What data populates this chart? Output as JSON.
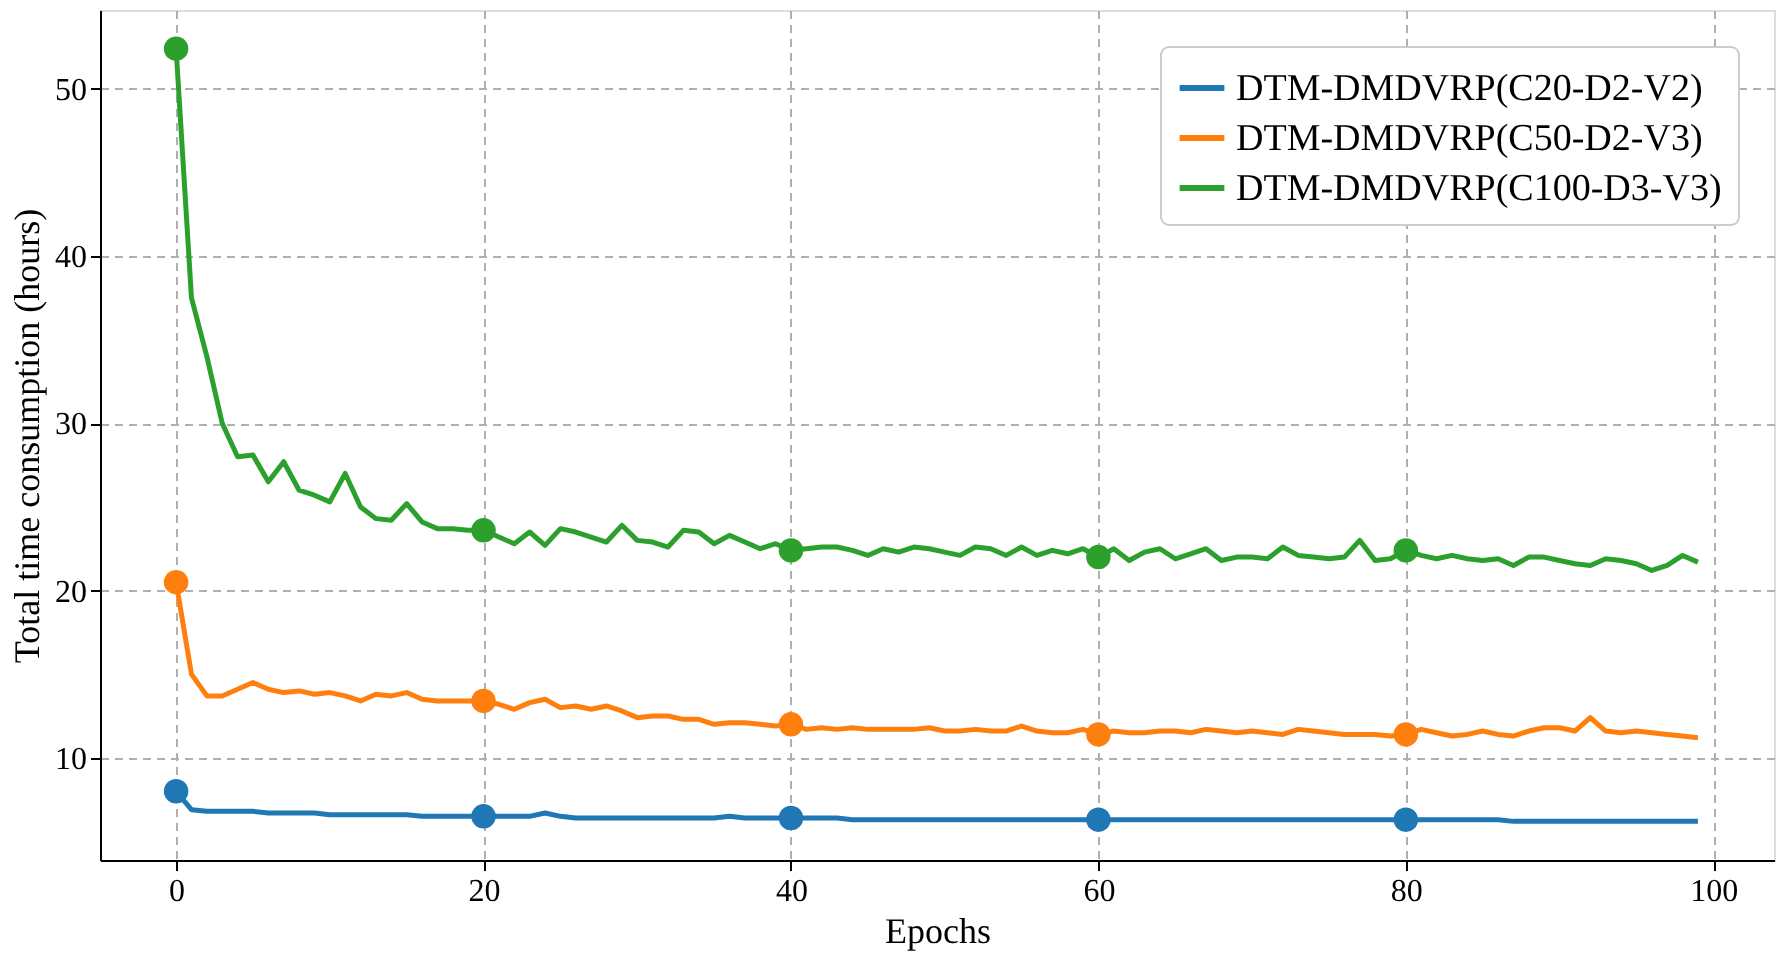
{
  "chart_data": {
    "type": "line",
    "xlabel": "Epochs",
    "ylabel": "Total time consumption (hours)",
    "x": [
      0,
      1,
      2,
      3,
      4,
      5,
      6,
      7,
      8,
      9,
      10,
      11,
      12,
      13,
      14,
      15,
      16,
      17,
      18,
      19,
      20,
      21,
      22,
      23,
      24,
      25,
      26,
      27,
      28,
      29,
      30,
      31,
      32,
      33,
      34,
      35,
      36,
      37,
      38,
      39,
      40,
      41,
      42,
      43,
      44,
      45,
      46,
      47,
      48,
      49,
      50,
      51,
      52,
      53,
      54,
      55,
      56,
      57,
      58,
      59,
      60,
      61,
      62,
      63,
      64,
      65,
      66,
      67,
      68,
      69,
      70,
      71,
      72,
      73,
      74,
      75,
      76,
      77,
      78,
      79,
      80,
      81,
      82,
      83,
      84,
      85,
      86,
      87,
      88,
      89,
      90,
      91,
      92,
      93,
      94,
      95,
      96,
      97,
      98,
      99
    ],
    "series": [
      {
        "name": "DTM-DMDVRP(C20-D2-V2)",
        "color": "#1f77b4",
        "values": [
          8.0,
          6.9,
          6.8,
          6.8,
          6.8,
          6.8,
          6.7,
          6.7,
          6.7,
          6.7,
          6.6,
          6.6,
          6.6,
          6.6,
          6.6,
          6.6,
          6.5,
          6.5,
          6.5,
          6.5,
          6.5,
          6.5,
          6.5,
          6.5,
          6.7,
          6.5,
          6.4,
          6.4,
          6.4,
          6.4,
          6.4,
          6.4,
          6.4,
          6.4,
          6.4,
          6.4,
          6.5,
          6.4,
          6.4,
          6.4,
          6.4,
          6.4,
          6.4,
          6.4,
          6.3,
          6.3,
          6.3,
          6.3,
          6.3,
          6.3,
          6.3,
          6.3,
          6.3,
          6.3,
          6.3,
          6.3,
          6.3,
          6.3,
          6.3,
          6.3,
          6.3,
          6.3,
          6.3,
          6.3,
          6.3,
          6.3,
          6.3,
          6.3,
          6.3,
          6.3,
          6.3,
          6.3,
          6.3,
          6.3,
          6.3,
          6.3,
          6.3,
          6.3,
          6.3,
          6.3,
          6.3,
          6.3,
          6.3,
          6.3,
          6.3,
          6.3,
          6.3,
          6.2,
          6.2,
          6.2,
          6.2,
          6.2,
          6.2,
          6.2,
          6.2,
          6.2,
          6.2,
          6.2,
          6.2,
          6.2
        ]
      },
      {
        "name": "DTM-DMDVRP(C50-D2-V3)",
        "color": "#ff7f0e",
        "values": [
          20.5,
          15.0,
          13.7,
          13.7,
          14.1,
          14.5,
          14.1,
          13.9,
          14.0,
          13.8,
          13.9,
          13.7,
          13.4,
          13.8,
          13.7,
          13.9,
          13.5,
          13.4,
          13.4,
          13.4,
          13.4,
          13.2,
          12.9,
          13.3,
          13.5,
          13.0,
          13.1,
          12.9,
          13.1,
          12.8,
          12.4,
          12.5,
          12.5,
          12.3,
          12.3,
          12.0,
          12.1,
          12.1,
          12.0,
          11.9,
          12.0,
          11.7,
          11.8,
          11.7,
          11.8,
          11.7,
          11.7,
          11.7,
          11.7,
          11.8,
          11.6,
          11.6,
          11.7,
          11.6,
          11.6,
          11.9,
          11.6,
          11.5,
          11.5,
          11.7,
          11.4,
          11.6,
          11.5,
          11.5,
          11.6,
          11.6,
          11.5,
          11.7,
          11.6,
          11.5,
          11.6,
          11.5,
          11.4,
          11.7,
          11.6,
          11.5,
          11.4,
          11.4,
          11.4,
          11.3,
          11.4,
          11.7,
          11.5,
          11.3,
          11.4,
          11.6,
          11.4,
          11.3,
          11.6,
          11.8,
          11.8,
          11.6,
          12.4,
          11.6,
          11.5,
          11.6,
          11.5,
          11.4,
          11.3,
          11.2
        ]
      },
      {
        "name": "DTM-DMDVRP(C100-D3-V3)",
        "color": "#2ca02c",
        "values": [
          52.4,
          37.5,
          34.0,
          30.0,
          28.0,
          28.1,
          26.5,
          27.7,
          26.0,
          25.7,
          25.3,
          27.0,
          25.0,
          24.3,
          24.2,
          25.2,
          24.1,
          23.7,
          23.7,
          23.6,
          23.6,
          23.2,
          22.8,
          23.5,
          22.7,
          23.7,
          23.5,
          23.2,
          22.9,
          23.9,
          23.0,
          22.9,
          22.6,
          23.6,
          23.5,
          22.8,
          23.3,
          22.9,
          22.5,
          22.8,
          22.4,
          22.5,
          22.6,
          22.6,
          22.4,
          22.1,
          22.5,
          22.3,
          22.6,
          22.5,
          22.3,
          22.1,
          22.6,
          22.5,
          22.1,
          22.6,
          22.1,
          22.4,
          22.2,
          22.5,
          22.0,
          22.5,
          21.8,
          22.3,
          22.5,
          21.9,
          22.2,
          22.5,
          21.8,
          22.0,
          22.0,
          21.9,
          22.6,
          22.1,
          22.0,
          21.9,
          22.0,
          23.0,
          21.8,
          21.9,
          22.4,
          22.1,
          21.9,
          22.1,
          21.9,
          21.8,
          21.9,
          21.5,
          22.0,
          22.0,
          21.8,
          21.6,
          21.5,
          21.9,
          21.8,
          21.6,
          21.2,
          21.5,
          22.1,
          21.7
        ]
      },
      {
        "type": "scatter",
        "marker": "circle",
        "color": "#1f77b4",
        "x": [
          0,
          20,
          40,
          60,
          80
        ],
        "values": [
          8.0,
          6.5,
          6.4,
          6.3,
          6.3
        ]
      },
      {
        "type": "scatter",
        "marker": "circle",
        "color": "#ff7f0e",
        "x": [
          0,
          20,
          40,
          60,
          80
        ],
        "values": [
          20.5,
          13.4,
          12.0,
          11.4,
          11.4
        ]
      },
      {
        "type": "scatter",
        "marker": "circle",
        "color": "#2ca02c",
        "x": [
          0,
          20,
          40,
          60,
          80
        ],
        "values": [
          52.4,
          23.6,
          22.4,
          22.0,
          22.4
        ]
      }
    ],
    "xlim": [
      -4.95,
      103.95
    ],
    "ylim": [
      3.89,
      54.71
    ],
    "xticks": [
      0,
      20,
      40,
      60,
      80,
      100
    ],
    "yticks": [
      10,
      20,
      30,
      40,
      50
    ],
    "grid": true,
    "legend": "top right",
    "line_style": "solid"
  }
}
